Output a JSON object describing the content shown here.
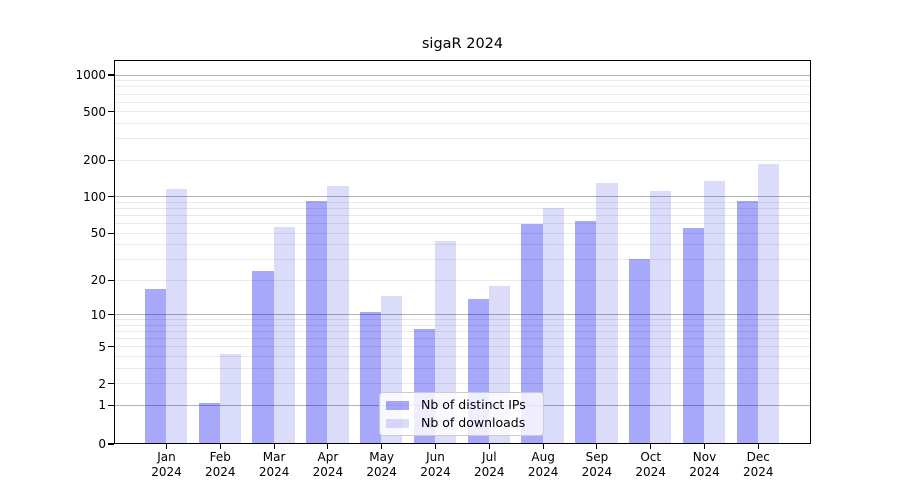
{
  "chart_data": {
    "type": "bar",
    "title": "sigaR 2024",
    "categories": [
      "Jan",
      "Feb",
      "Mar",
      "Apr",
      "May",
      "Jun",
      "Jul",
      "Aug",
      "Sep",
      "Oct",
      "Nov",
      "Dec"
    ],
    "category_year": "2024",
    "series": [
      {
        "name": "Nb of distinct IPs",
        "slug": "distinct-ips",
        "color": "rgba(0,0,240,0.34)",
        "values": [
          16,
          1,
          23,
          89,
          10,
          7,
          13,
          57,
          60,
          29,
          53,
          89
        ]
      },
      {
        "name": "Nb of downloads",
        "slug": "downloads",
        "color": "rgba(0,0,220,0.14)",
        "values": [
          110,
          4,
          54,
          118,
          14,
          41,
          17,
          77,
          125,
          107,
          130,
          179
        ]
      }
    ],
    "yscale": "log10(1+x)",
    "ylim": [
      0,
      1280
    ],
    "yticks": [
      0,
      1,
      2,
      5,
      10,
      20,
      50,
      100,
      200,
      500,
      1000
    ],
    "grid": {
      "major_lines": [
        1,
        10,
        100,
        1000
      ],
      "minor_lines": [
        2,
        3,
        4,
        5,
        6,
        7,
        8,
        9,
        20,
        30,
        40,
        50,
        60,
        70,
        80,
        90,
        200,
        300,
        400,
        500,
        600,
        700,
        800,
        900
      ],
      "major_color": "#b2b2b2",
      "minor_color": "#e9e9e9"
    },
    "legend": {
      "position": "lower center"
    },
    "colors": {
      "spine": "#000000",
      "text": "#000000",
      "background": "#ffffff"
    }
  }
}
